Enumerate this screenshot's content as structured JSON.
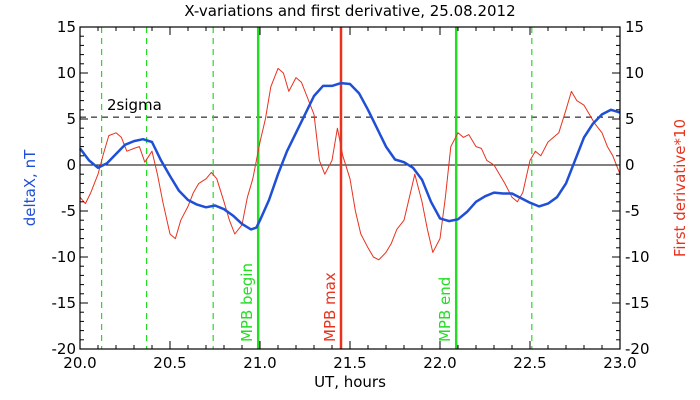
{
  "chart_data": {
    "type": "line",
    "title": "X-variations and first derivative, 25.08.2012",
    "xlabel": "UT, hours",
    "ylabel_left": "deltaX, nT",
    "ylabel_right": "First derivative*10",
    "xlim": [
      20.0,
      23.0
    ],
    "ylim_left": [
      -20,
      15
    ],
    "ylim_right": [
      -20,
      15
    ],
    "xticks": [
      "20.0",
      "20.5",
      "21.0",
      "21.5",
      "22.0",
      "22.5",
      "23.0"
    ],
    "yticks_left": [
      "-20",
      "-15",
      "-10",
      "-5",
      "0",
      "5",
      "10",
      "15"
    ],
    "yticks_right": [
      "-20",
      "-15",
      "-10",
      "-5",
      "0",
      "5",
      "10",
      "15"
    ],
    "colors": {
      "deltaX": "#1f4fd6",
      "derivative": "#e8321e",
      "green": "#22dd22",
      "red_marker": "#e8321e",
      "axis": "#000000"
    },
    "series": [
      {
        "key": "deltaX",
        "x": [
          20.0,
          20.05,
          20.1,
          20.15,
          20.2,
          20.25,
          20.3,
          20.35,
          20.4,
          20.45,
          20.5,
          20.55,
          20.6,
          20.65,
          20.7,
          20.75,
          20.8,
          20.85,
          20.9,
          20.95,
          20.98,
          21.0,
          21.05,
          21.1,
          21.15,
          21.2,
          21.25,
          21.3,
          21.35,
          21.4,
          21.45,
          21.5,
          21.55,
          21.6,
          21.65,
          21.7,
          21.75,
          21.8,
          21.85,
          21.9,
          21.95,
          22.0,
          22.05,
          22.1,
          22.15,
          22.2,
          22.25,
          22.3,
          22.35,
          22.4,
          22.45,
          22.5,
          22.55,
          22.6,
          22.65,
          22.7,
          22.75,
          22.8,
          22.85,
          22.9,
          22.95,
          23.0
        ],
        "y": [
          1.8,
          0.5,
          -0.3,
          0.2,
          1.2,
          2.2,
          2.6,
          2.8,
          2.5,
          0.5,
          -1.2,
          -2.8,
          -3.8,
          -4.3,
          -4.6,
          -4.4,
          -4.8,
          -5.5,
          -6.4,
          -7.0,
          -6.8,
          -6.0,
          -3.8,
          -1.0,
          1.5,
          3.5,
          5.5,
          7.5,
          8.6,
          8.6,
          8.9,
          8.8,
          7.8,
          6.0,
          4.0,
          2.0,
          0.6,
          0.3,
          -0.3,
          -1.6,
          -4.0,
          -5.8,
          -6.1,
          -5.9,
          -5.1,
          -4.0,
          -3.4,
          -3.0,
          -3.1,
          -3.1,
          -3.6,
          -4.1,
          -4.5,
          -4.2,
          -3.5,
          -2.0,
          0.5,
          3.0,
          4.5,
          5.5,
          6.0,
          5.7
        ]
      },
      {
        "key": "derivative",
        "x": [
          20.0,
          20.03,
          20.06,
          20.1,
          20.13,
          20.16,
          20.2,
          20.23,
          20.26,
          20.3,
          20.33,
          20.36,
          20.4,
          20.43,
          20.46,
          20.5,
          20.53,
          20.56,
          20.6,
          20.63,
          20.66,
          20.7,
          20.73,
          20.76,
          20.8,
          20.83,
          20.86,
          20.9,
          20.93,
          20.96,
          21.0,
          21.03,
          21.06,
          21.1,
          21.13,
          21.16,
          21.2,
          21.23,
          21.26,
          21.3,
          21.33,
          21.36,
          21.4,
          21.43,
          21.46,
          21.5,
          21.53,
          21.56,
          21.6,
          21.63,
          21.66,
          21.7,
          21.73,
          21.76,
          21.8,
          21.83,
          21.86,
          21.9,
          21.93,
          21.96,
          22.0,
          22.03,
          22.06,
          22.1,
          22.13,
          22.16,
          22.2,
          22.23,
          22.26,
          22.3,
          22.33,
          22.36,
          22.4,
          22.43,
          22.46,
          22.5,
          22.53,
          22.56,
          22.6,
          22.63,
          22.66,
          22.7,
          22.73,
          22.76,
          22.8,
          22.83,
          22.86,
          22.9,
          22.93,
          22.96,
          23.0
        ],
        "y": [
          -3.5,
          -4.2,
          -3.0,
          -1.0,
          1.2,
          3.2,
          3.5,
          3.0,
          1.5,
          1.8,
          2.0,
          0.3,
          1.5,
          -1.0,
          -4.0,
          -7.5,
          -8.0,
          -6.0,
          -4.5,
          -3.0,
          -2.0,
          -1.5,
          -0.8,
          -1.5,
          -4.0,
          -6.0,
          -7.5,
          -6.5,
          -3.5,
          -1.5,
          2.5,
          5.0,
          8.5,
          10.5,
          10.0,
          8.0,
          9.5,
          9.0,
          7.5,
          5.5,
          0.5,
          -1.0,
          0.5,
          4.0,
          1.0,
          -1.5,
          -5.0,
          -7.5,
          -9.0,
          -10.0,
          -10.3,
          -9.5,
          -8.5,
          -7.0,
          -6.0,
          -3.5,
          -1.0,
          -4.0,
          -7.0,
          -9.5,
          -8.0,
          -3.5,
          2.0,
          3.5,
          3.0,
          3.3,
          2.0,
          1.8,
          0.5,
          0.0,
          -1.0,
          -2.0,
          -3.5,
          -4.0,
          -3.0,
          0.5,
          1.5,
          1.0,
          2.5,
          3.0,
          3.5,
          6.0,
          8.0,
          7.0,
          6.5,
          5.5,
          4.5,
          3.5,
          2.0,
          1.0,
          -1.0
        ]
      }
    ],
    "threshold": {
      "label": "2sigma",
      "value": 5.2,
      "style": "dashed"
    },
    "dashed_green_lines": [
      20.12,
      20.37,
      20.74,
      22.51
    ],
    "markers": [
      {
        "label": "MPB begin",
        "x": 20.99,
        "color": "#22dd22"
      },
      {
        "label": "MPB max",
        "x": 21.45,
        "color": "#e8321e"
      },
      {
        "label": "MPB end",
        "x": 22.09,
        "color": "#22dd22"
      }
    ]
  }
}
